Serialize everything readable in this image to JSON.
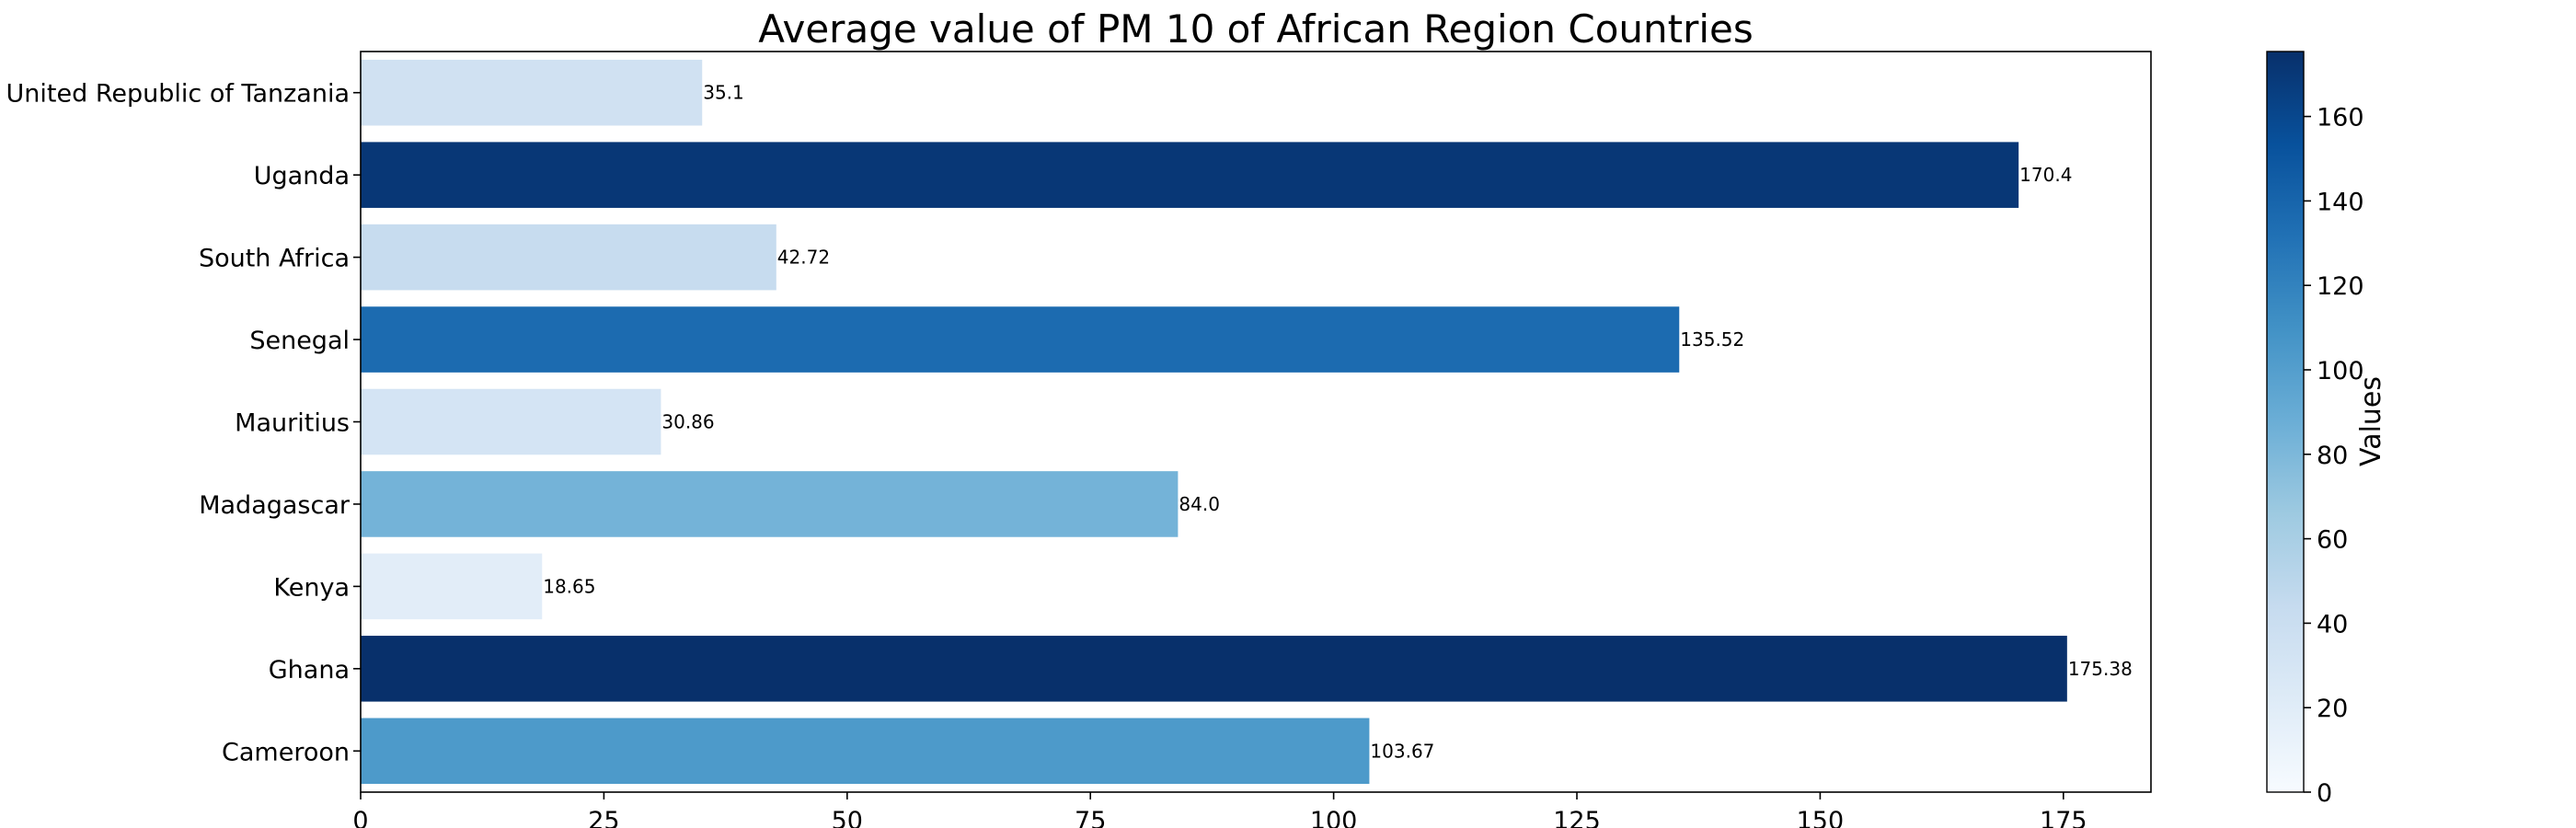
{
  "chart_data": {
    "type": "bar",
    "orientation": "horizontal",
    "title": "Average value of PM 10 of African Region Countries",
    "categories": [
      "Cameroon",
      "Ghana",
      "Kenya",
      "Madagascar",
      "Mauritius",
      "Senegal",
      "South Africa",
      "Uganda",
      "United Republic of Tanzania"
    ],
    "values": [
      103.67,
      175.38,
      18.65,
      84.0,
      30.86,
      135.52,
      42.72,
      170.4,
      35.1
    ],
    "value_labels": [
      "103.67",
      "175.38",
      "18.65",
      "84.0",
      "30.86",
      "135.52",
      "42.72",
      "170.4",
      "35.1"
    ],
    "xlim": [
      0,
      184
    ],
    "xticks": [
      0,
      25,
      50,
      75,
      100,
      125,
      150,
      175
    ],
    "xtick_labels": [
      "0",
      "25",
      "50",
      "75",
      "100",
      "125",
      "150",
      "175"
    ],
    "grid": false,
    "colormap": "Blues",
    "colorbar": {
      "label": "Values",
      "range": [
        0,
        175.38
      ],
      "ticks": [
        0,
        20,
        40,
        60,
        80,
        100,
        120,
        140,
        160
      ],
      "tick_labels": [
        "0",
        "20",
        "40",
        "60",
        "80",
        "100",
        "120",
        "140",
        "160"
      ]
    }
  }
}
